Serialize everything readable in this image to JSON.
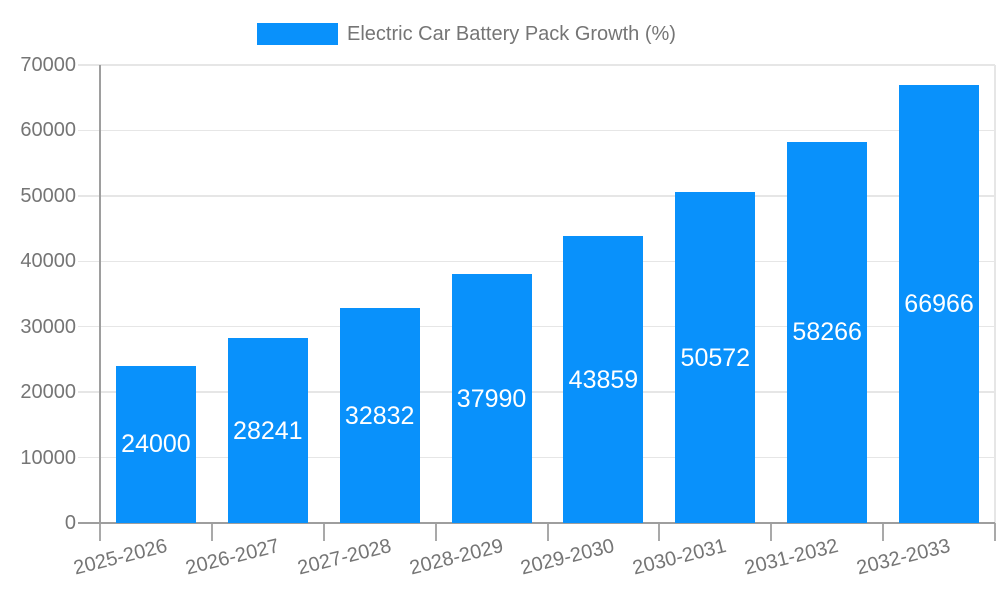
{
  "legend": {
    "label": "Electric Car Battery Pack Growth (%)"
  },
  "chart_data": {
    "type": "bar",
    "title": "Electric Car Battery Pack Growth (%)",
    "series_name": "Electric Car Battery Pack Growth (%)",
    "categories": [
      "2025-2026",
      "2026-2027",
      "2027-2028",
      "2028-2029",
      "2029-2030",
      "2030-2031",
      "2031-2032",
      "2032-2033"
    ],
    "values": [
      24000,
      28241,
      32832,
      37990,
      43859,
      50572,
      58266,
      66966
    ],
    "value_labels": [
      "24000",
      "28241",
      "32832",
      "37990",
      "43859",
      "50572",
      "58266",
      "66966"
    ],
    "xlabel": "",
    "ylabel": "",
    "ylim": [
      0,
      70000
    ],
    "yticks": [
      0,
      10000,
      20000,
      30000,
      40000,
      50000,
      60000,
      70000
    ],
    "ytick_labels": [
      "0",
      "10000",
      "20000",
      "30000",
      "40000",
      "50000",
      "60000",
      "70000"
    ],
    "grid": true,
    "legend_position": "top-center",
    "colors": {
      "bar": "#0991FB",
      "value_label": "#FFFFFF",
      "axis_text": "#757575",
      "grid_line": "#E6E6E6",
      "axis_line": "#9E9E9E",
      "background": "#FFFFFF"
    }
  }
}
